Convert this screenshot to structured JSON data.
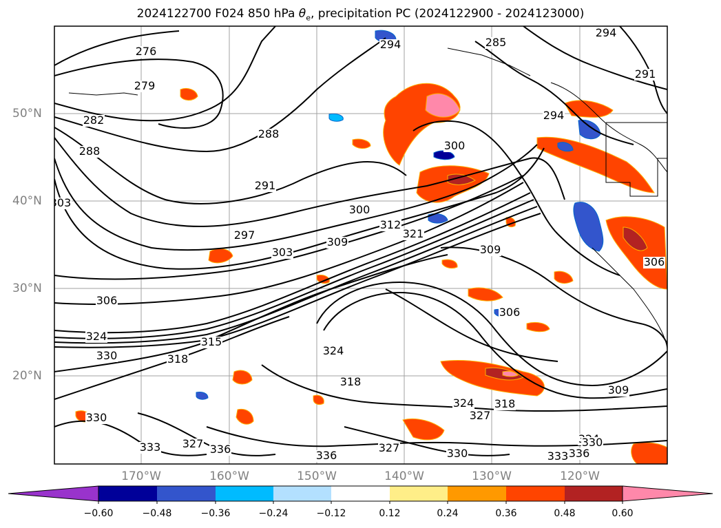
{
  "title_prefix": "2024122700 F024 850 hPa ",
  "title_theta": "θ",
  "title_sub": "e",
  "title_suffix": ", precipitation PC (2024122900 - 2024123000)",
  "lon_labels": [
    "170°W",
    "160°W",
    "150°W",
    "140°W",
    "130°W",
    "120°W"
  ],
  "lat_labels": [
    "50°N",
    "40°N",
    "30°N",
    "20°N"
  ],
  "colorbar": {
    "ticks": [
      "−0.60",
      "−0.48",
      "−0.36",
      "−0.24",
      "−0.12",
      "0.12",
      "0.24",
      "0.36",
      "0.48",
      "0.60"
    ],
    "under_color": "#9933cc",
    "over_color": "#ff88aa",
    "bins": [
      "#9933cc",
      "#000099",
      "#3355cc",
      "#00bbff",
      "#b3e0ff",
      "#ffffff",
      "#ffee88",
      "#ff9900",
      "#ff4400",
      "#b22222",
      "#ff88aa"
    ]
  },
  "contour_labels": [
    {
      "t": "276"
    },
    {
      "t": "279"
    },
    {
      "t": "282"
    },
    {
      "t": "288"
    },
    {
      "t": "303"
    },
    {
      "t": "288"
    },
    {
      "t": "291"
    },
    {
      "t": "297"
    },
    {
      "t": "303"
    },
    {
      "t": "300"
    },
    {
      "t": "312"
    },
    {
      "t": "321"
    },
    {
      "t": "306"
    },
    {
      "t": "309"
    },
    {
      "t": "315"
    },
    {
      "t": "324"
    },
    {
      "t": "330"
    },
    {
      "t": "318"
    },
    {
      "t": "324"
    },
    {
      "t": "318"
    },
    {
      "t": "309"
    },
    {
      "t": "306"
    },
    {
      "t": "324"
    },
    {
      "t": "327"
    },
    {
      "t": "318"
    },
    {
      "t": "330"
    },
    {
      "t": "333"
    },
    {
      "t": "327"
    },
    {
      "t": "336"
    },
    {
      "t": "336"
    },
    {
      "t": "327"
    },
    {
      "t": "330"
    },
    {
      "t": "333"
    },
    {
      "t": "336"
    },
    {
      "t": "324"
    },
    {
      "t": "294"
    },
    {
      "t": "285"
    },
    {
      "t": "294"
    },
    {
      "t": "291"
    },
    {
      "t": "300"
    },
    {
      "t": "294"
    },
    {
      "t": "309"
    },
    {
      "t": "306"
    },
    {
      "t": "330"
    }
  ]
}
